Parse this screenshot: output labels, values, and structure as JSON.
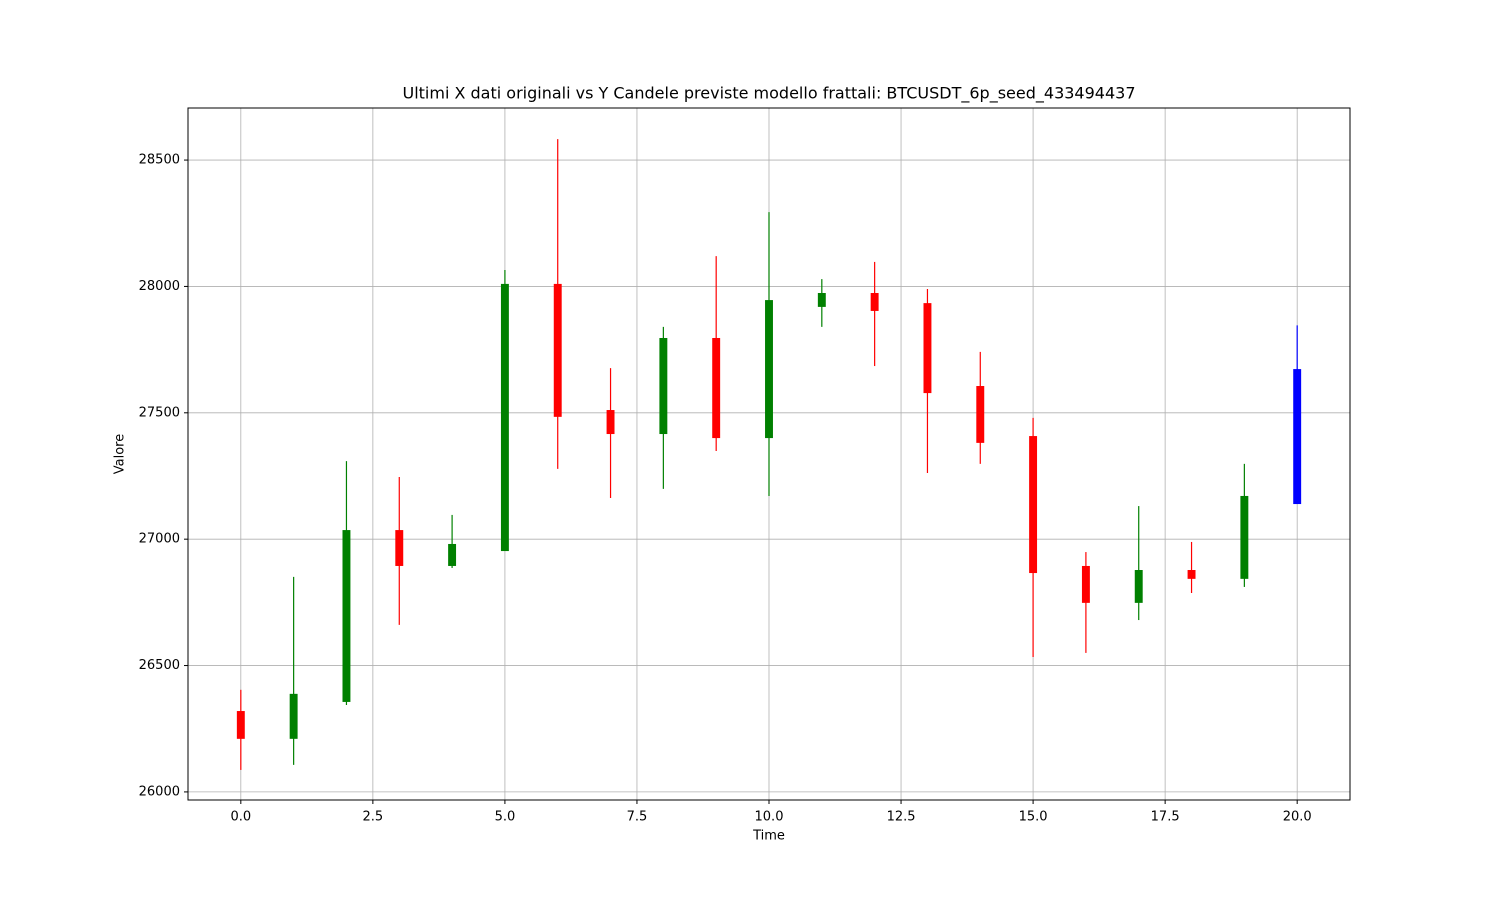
{
  "chart_data": {
    "type": "candlestick",
    "title": "Ultimi X dati originali vs Y Candele previste modello frattali: BTCUSDT_6p_seed_433494437",
    "x_label": "Time",
    "y_label": "Valore",
    "x": [
      0,
      1,
      2,
      3,
      4,
      5,
      6,
      7,
      8,
      9,
      10,
      11,
      12,
      13,
      14,
      15,
      16,
      17,
      18,
      19,
      20
    ],
    "open": [
      26320,
      26210,
      26356,
      27036,
      26894,
      26953,
      28010,
      27511,
      27416,
      27796,
      27400,
      27919,
      27974,
      27934,
      27606,
      27408,
      26894,
      26748,
      26878,
      26843,
      27139
    ],
    "high": [
      26404,
      26851,
      27309,
      27246,
      27096,
      28065,
      28583,
      27677,
      27840,
      28120,
      28294,
      28029,
      28097,
      27990,
      27741,
      27480,
      26949,
      27131,
      26989,
      27298,
      27846
    ],
    "low": [
      26087,
      26107,
      26344,
      26661,
      26886,
      26953,
      27278,
      27163,
      27199,
      27349,
      27171,
      27840,
      27685,
      27262,
      27298,
      26534,
      26550,
      26680,
      26787,
      26811,
      27139
    ],
    "close": [
      26210,
      26388,
      27036,
      26894,
      26981,
      28010,
      27484,
      27416,
      27796,
      27400,
      27946,
      27974,
      27903,
      27578,
      27381,
      26866,
      26748,
      26878,
      26843,
      27171,
      27673
    ],
    "colors": [
      "red",
      "green",
      "green",
      "red",
      "green",
      "green",
      "red",
      "red",
      "green",
      "red",
      "green",
      "green",
      "red",
      "red",
      "red",
      "red",
      "red",
      "green",
      "red",
      "green",
      "blue"
    ],
    "xlim": [
      -1,
      21
    ],
    "ylim": [
      25968,
      28706
    ],
    "xticks": [
      {
        "value": 0,
        "label": "0.0"
      },
      2.5,
      {
        "value": 5,
        "label": "5.0"
      },
      7.5,
      {
        "value": 10,
        "label": "10.0"
      },
      12.5,
      {
        "value": 15,
        "label": "15.0"
      },
      17.5,
      {
        "value": 20,
        "label": "20.0"
      }
    ],
    "yticks": [
      26000,
      26500,
      27000,
      27500,
      28000,
      28500
    ],
    "grid": true
  }
}
